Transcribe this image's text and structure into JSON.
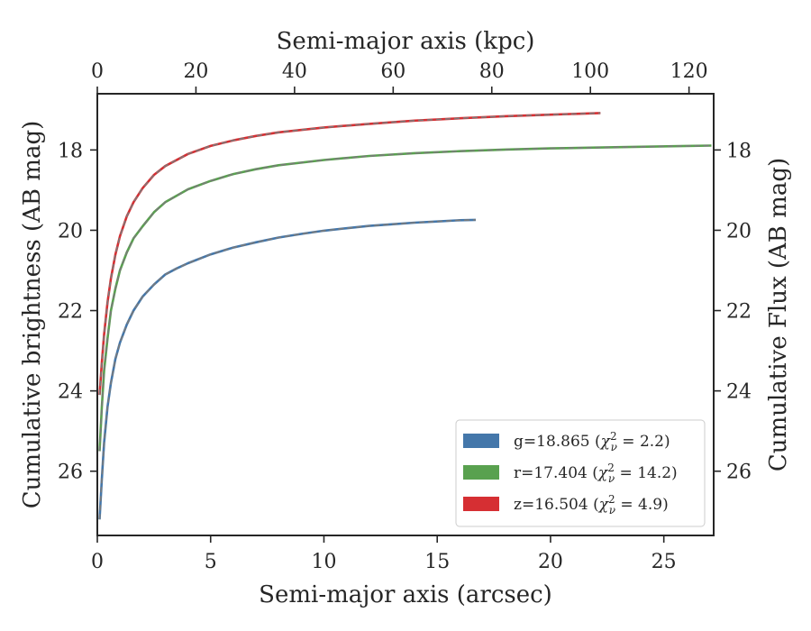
{
  "chart_data": {
    "type": "line",
    "xlabel": "Semi-major axis (arcsec)",
    "ylabel": "Cumulative brightness (AB mag)",
    "x2label": "Semi-major axis (kpc)",
    "y2label": "Cumulative Flux (AB mag)",
    "xlim": [
      0,
      27.2
    ],
    "ylim": [
      27.6,
      16.6
    ],
    "x2lim": [
      0,
      125
    ],
    "y_inverted": true,
    "xticks": [
      "0",
      "5",
      "10",
      "15",
      "20",
      "25"
    ],
    "yticks": [
      "18",
      "20",
      "22",
      "24",
      "26"
    ],
    "x2ticks": [
      "0",
      "20",
      "40",
      "60",
      "80",
      "100",
      "120"
    ],
    "y2ticks": [
      "18",
      "20",
      "22",
      "24",
      "26"
    ],
    "grid": false,
    "legend_position": "lower-right",
    "series": [
      {
        "name": "g=18.865 (χ²ν = 2.2)",
        "label_prefix": "g=18.865 (",
        "label_chi": "χ",
        "label_sup": "2",
        "label_sub": "ν",
        "label_suffix": " = 2.2)",
        "color": "#4477aa",
        "x": [
          0.1,
          0.2,
          0.3,
          0.45,
          0.6,
          0.8,
          1.0,
          1.3,
          1.6,
          2.0,
          2.5,
          3.0,
          3.5,
          4.0,
          5.0,
          6.0,
          7.0,
          8.0,
          9.0,
          10.0,
          11.0,
          12.0,
          13.0,
          14.0,
          15.0,
          16.0,
          16.7
        ],
        "y": [
          27.2,
          26.2,
          25.3,
          24.4,
          23.8,
          23.2,
          22.8,
          22.35,
          22.0,
          21.65,
          21.35,
          21.1,
          20.95,
          20.82,
          20.6,
          20.43,
          20.3,
          20.18,
          20.09,
          20.01,
          19.95,
          19.89,
          19.85,
          19.81,
          19.78,
          19.75,
          19.74
        ]
      },
      {
        "name": "r=17.404 (χ²ν = 14.2)",
        "label_prefix": "r=17.404 (",
        "label_chi": "χ",
        "label_sup": "2",
        "label_sub": "ν",
        "label_suffix": " = 14.2)",
        "color": "#59a14f",
        "x": [
          0.1,
          0.2,
          0.3,
          0.45,
          0.6,
          0.8,
          1.0,
          1.3,
          1.6,
          2.0,
          2.5,
          3.0,
          4.0,
          5.0,
          6.0,
          7.0,
          8.0,
          10.0,
          12.0,
          14.0,
          16.0,
          18.0,
          20.0,
          22.0,
          24.0,
          26.0,
          27.1
        ],
        "y": [
          25.5,
          24.4,
          23.5,
          22.7,
          22.0,
          21.45,
          21.0,
          20.55,
          20.2,
          19.9,
          19.55,
          19.3,
          18.98,
          18.77,
          18.6,
          18.48,
          18.38,
          18.25,
          18.15,
          18.08,
          18.03,
          17.99,
          17.96,
          17.94,
          17.92,
          17.9,
          17.89
        ]
      },
      {
        "name": "z=16.504 (χ²ν = 4.9)",
        "label_prefix": "z=16.504 (",
        "label_chi": "χ",
        "label_sup": "2",
        "label_sub": "ν",
        "label_suffix": " = 4.9)",
        "color": "#d62f33",
        "x": [
          0.1,
          0.2,
          0.3,
          0.45,
          0.6,
          0.8,
          1.0,
          1.3,
          1.6,
          2.0,
          2.5,
          3.0,
          4.0,
          5.0,
          6.0,
          7.0,
          8.0,
          10.0,
          12.0,
          14.0,
          16.0,
          18.0,
          20.0,
          22.2
        ],
        "y": [
          24.1,
          23.3,
          22.6,
          21.8,
          21.2,
          20.6,
          20.15,
          19.65,
          19.3,
          18.95,
          18.62,
          18.4,
          18.1,
          17.9,
          17.76,
          17.65,
          17.56,
          17.44,
          17.35,
          17.27,
          17.21,
          17.16,
          17.12,
          17.08
        ]
      }
    ]
  }
}
